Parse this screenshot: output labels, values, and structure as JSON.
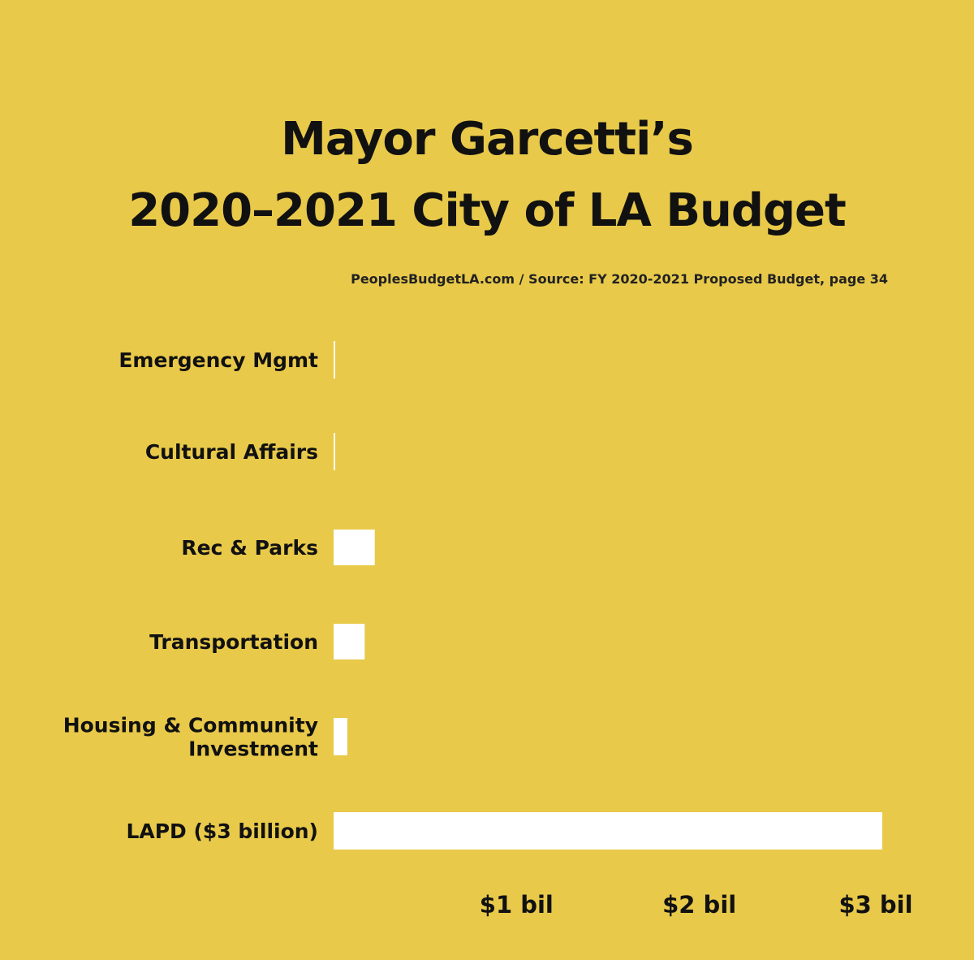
{
  "chart_data": {
    "type": "bar",
    "orientation": "horizontal",
    "title": "Mayor Garcetti’s 2020–2021 City of LA Budget",
    "title_lines": [
      "Mayor Garcetti’s",
      "2020–2021 City of LA Budget"
    ],
    "subtitle": "PeoplesBudgetLA.com / Source: FY 2020-2021 Proposed Budget, page 34",
    "categories": [
      [
        "Emergency  Mgmt"
      ],
      [
        "Cultural Affairs"
      ],
      [
        "Rec & Parks"
      ],
      [
        "Transportation"
      ],
      [
        "Housing & Community",
        "Investment"
      ],
      [
        "LAPD ($3 billion)"
      ]
    ],
    "values": [
      0.001,
      0.008,
      0.225,
      0.17,
      0.075,
      3.0
    ],
    "xlim": [
      0,
      3.0
    ],
    "x_ticks": [
      1,
      2,
      3
    ],
    "x_tick_labels": [
      "$1 bil",
      "$2 bil",
      "$3 bil"
    ],
    "xlabel": "",
    "ylabel": "",
    "grid": false,
    "bar_color": "#ffffff",
    "background_color": "#e8c94a"
  }
}
